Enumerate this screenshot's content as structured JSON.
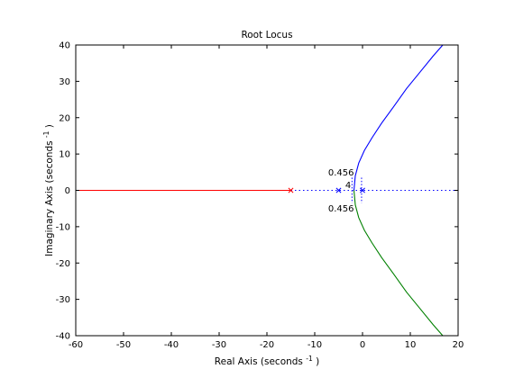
{
  "chart_data": {
    "type": "line",
    "title": "Root Locus",
    "xlabel": "Real Axis (seconds",
    "xlabel_exp": "-1",
    "ylabel": "Imaginary Axis (seconds",
    "ylabel_exp": "-1",
    "xlim": [
      -60,
      20
    ],
    "ylim": [
      -40,
      40
    ],
    "xticks": [
      "-60",
      "-50",
      "-40",
      "-30",
      "-20",
      "-10",
      "0",
      "10",
      "20"
    ],
    "yticks": [
      "-40",
      "-30",
      "-20",
      "-10",
      "0",
      "10",
      "20",
      "30",
      "40"
    ],
    "grid": false,
    "colors": {
      "branch_upper": "#0000ff",
      "branch_lower": "#008000",
      "branch_real": "#ff0000",
      "poles": "#0000ff",
      "asymptote": "#0000ff"
    },
    "series": [
      {
        "color": "#0000ff",
        "x": [
          -1.8,
          -1.5,
          -0.8,
          0.4,
          2.0,
          4.0,
          6.5,
          9.2,
          12.0,
          14.8,
          16.8
        ],
        "y": [
          0.0,
          4.0,
          7.5,
          11.0,
          14.5,
          18.5,
          23.0,
          28.0,
          32.5,
          37.0,
          40.0
        ]
      },
      {
        "color": "#008000",
        "x": [
          -1.8,
          -1.5,
          -0.8,
          0.4,
          2.0,
          4.0,
          6.5,
          9.2,
          12.0,
          14.8,
          16.8
        ],
        "y": [
          0.0,
          -4.0,
          -7.5,
          -11.0,
          -14.5,
          -18.5,
          -23.0,
          -28.0,
          -32.5,
          -37.0,
          -40.0
        ]
      },
      {
        "color": "#ff0000",
        "x": [
          -15.0,
          -60.0
        ],
        "y": [
          0.0,
          0.0
        ]
      }
    ],
    "poles": [
      {
        "x": -15,
        "y": 0,
        "color": "#ff0000"
      },
      {
        "x": -5,
        "y": 0,
        "color": "#0000ff"
      },
      {
        "x": 0,
        "y": 0,
        "color": "#0000ff"
      }
    ],
    "annotations": [
      {
        "text": "0.456",
        "x": -4.5,
        "y": 5.0
      },
      {
        "text": "4",
        "x": -3.0,
        "y": 1.5
      },
      {
        "text": "0.456",
        "x": -4.5,
        "y": -5.0
      }
    ]
  }
}
